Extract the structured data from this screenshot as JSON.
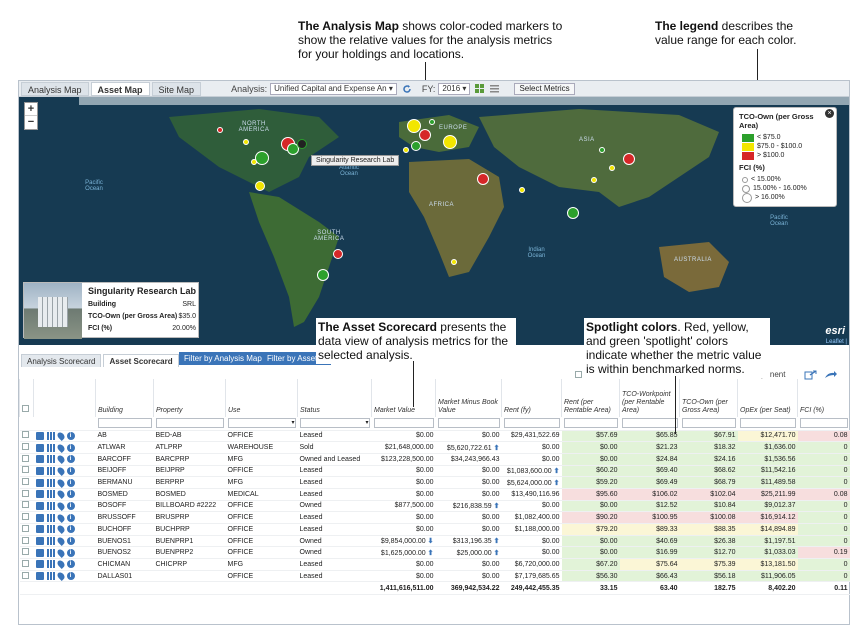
{
  "callouts": {
    "map_title": "The Analysis Map",
    "map_text": " shows color-coded markers to show the relative values for the analysis metrics for your holdings and locations.",
    "legend_title": "The legend",
    "legend_text": " describes the value range for each color.",
    "scorecard_title": "The Asset Scorecard",
    "scorecard_text": " presents the data view of analysis metrics for the selected analysis.",
    "spotlight_title": "Spotlight colors",
    "spotlight_text": ". Red, yellow, and green 'spotlight' colors indicate whether the metric value is within benchmarked norms."
  },
  "top_tabs": [
    "Analysis Map",
    "Asset Map",
    "Site Map"
  ],
  "toolbar": {
    "analysis_label": "Analysis:",
    "analysis_value": "Unified Capital and Expense An",
    "fy_label": "FY:",
    "fy_value": "2016",
    "select_metrics": "Select Metrics"
  },
  "map": {
    "zoom_in": "+",
    "zoom_out": "−",
    "labels": {
      "north_america": "NORTH AMERICA",
      "south_america": "SOUTH AMERICA",
      "africa": "AFRICA",
      "asia": "ASIA",
      "australia": "AUSTRALIA",
      "europe": "EUROPE",
      "pacific_ocean_1": "Pacific Ocean",
      "atlantic_ocean": "Atlantic Ocean",
      "pacific_ocean_2": "Pacific Ocean",
      "indian_ocean": "Indian Ocean"
    },
    "tooltip": "Singularity Research Lab",
    "esri": "esri",
    "leaflet": "Leaflet |"
  },
  "legend": {
    "tco_title": "TCO-Own (per Gross Area)",
    "tco_items": [
      {
        "label": "< $75.0",
        "color": "#2ca02c"
      },
      {
        "label": "$75.0 - $100.0",
        "color": "#f2e600"
      },
      {
        "label": "> $100.0",
        "color": "#d62728"
      }
    ],
    "fci_title": "FCI (%)",
    "fci_items": [
      "< 15.00%",
      "15.00% - 16.00%",
      "> 16.00%"
    ]
  },
  "infocard": {
    "title": "Singularity Research Lab",
    "rows": [
      {
        "k": "Building",
        "v": "SRL"
      },
      {
        "k": "TCO-Own (per Gross Area)",
        "v": "$35.0"
      },
      {
        "k": "FCI (%)",
        "v": "20.00%"
      }
    ]
  },
  "scorecard_tabs": [
    "Analysis Scorecard",
    "Asset Scorecard"
  ],
  "filters": [
    "Filter by Analysis Map",
    "Filter by Asset M"
  ],
  "right_toolbar_text": "ponent",
  "columns": [
    "Building",
    "Property",
    "Use",
    "Status",
    "Market Value",
    "Market Minus Book Value",
    "Rent (fy)",
    "Rent (per Rentable Area)",
    "TCO-Workpoint (per Rentable Area)",
    "TCO-Own (per Gross Area)",
    "OpEx (per Seat)",
    "FCI (%)"
  ],
  "rows": [
    {
      "building": "AB",
      "property": "BED-AB",
      "use": "OFFICE",
      "status": "Leased",
      "market": "$0.00",
      "mmb": "$0.00",
      "rent": "$29,431,522.69",
      "rpra": "$57.69",
      "tcow": "$65.85",
      "tcoo": "$67.91",
      "opex": "$12,471.70",
      "fci": "0.08"
    },
    {
      "building": "ATLWAR",
      "property": "ATLPRP",
      "use": "WAREHOUSE",
      "status": "Sold",
      "market": "$21,648,000.00",
      "mmb": "$5,620,722.61",
      "rent": "$0.00",
      "rpra": "$0.00",
      "tcow": "$21.23",
      "tcoo": "$18.32",
      "opex": "$1,636.00",
      "fci": "0"
    },
    {
      "building": "BARCOFF",
      "property": "BARCPRP",
      "use": "MFG",
      "status": "Owned and Leased",
      "market": "$123,228,500.00",
      "mmb": "$34,243,966.43",
      "rent": "$0.00",
      "rpra": "$0.00",
      "tcow": "$24.84",
      "tcoo": "$24.16",
      "opex": "$1,536.56",
      "fci": "0"
    },
    {
      "building": "BEIJOFF",
      "property": "BEIJPRP",
      "use": "OFFICE",
      "status": "Leased",
      "market": "$0.00",
      "mmb": "$0.00",
      "rent": "$1,083,600.00",
      "rpra": "$60.20",
      "tcow": "$69.40",
      "tcoo": "$68.62",
      "opex": "$11,542.16",
      "fci": "0"
    },
    {
      "building": "BERMANU",
      "property": "BERPRP",
      "use": "MFG",
      "status": "Leased",
      "market": "$0.00",
      "mmb": "$0.00",
      "rent": "$5,624,000.00",
      "rpra": "$59.20",
      "tcow": "$69.49",
      "tcoo": "$68.79",
      "opex": "$11,489.58",
      "fci": "0"
    },
    {
      "building": "BOSMED",
      "property": "BOSMED",
      "use": "MEDICAL",
      "status": "Leased",
      "market": "$0.00",
      "mmb": "$0.00",
      "rent": "$13,490,116.96",
      "rpra": "$95.60",
      "tcow": "$106.02",
      "tcoo": "$102.04",
      "opex": "$25,211.99",
      "fci": "0.08"
    },
    {
      "building": "BOSOFF",
      "property": "BILLBOARD #2222",
      "use": "OFFICE",
      "status": "Owned",
      "market": "$877,500.00",
      "mmb": "$216,838.59",
      "rent": "$0.00",
      "rpra": "$0.00",
      "tcow": "$12.52",
      "tcoo": "$10.84",
      "opex": "$9,012.37",
      "fci": "0"
    },
    {
      "building": "BRUSSOFF",
      "property": "BRUSPRP",
      "use": "OFFICE",
      "status": "Leased",
      "market": "$0.00",
      "mmb": "$0.00",
      "rent": "$1,082,400.00",
      "rpra": "$90.20",
      "tcow": "$100.95",
      "tcoo": "$100.08",
      "opex": "$16,914.12",
      "fci": "0"
    },
    {
      "building": "BUCHOFF",
      "property": "BUCHPRP",
      "use": "OFFICE",
      "status": "Leased",
      "market": "$0.00",
      "mmb": "$0.00",
      "rent": "$1,188,000.00",
      "rpra": "$79.20",
      "tcow": "$89.33",
      "tcoo": "$88.35",
      "opex": "$14,894.89",
      "fci": "0"
    },
    {
      "building": "BUENOS1",
      "property": "BUENPRP1",
      "use": "OFFICE",
      "status": "Owned",
      "market": "$9,854,000.00",
      "mmb": "$313,196.35",
      "rent": "$0.00",
      "rpra": "$0.00",
      "tcow": "$40.69",
      "tcoo": "$26.38",
      "opex": "$1,197.51",
      "fci": "0"
    },
    {
      "building": "BUENOS2",
      "property": "BUENPRP2",
      "use": "OFFICE",
      "status": "Owned",
      "market": "$1,625,000.00",
      "mmb": "$25,000.00",
      "rent": "$0.00",
      "rpra": "$0.00",
      "tcow": "$16.99",
      "tcoo": "$12.70",
      "opex": "$1,033.03",
      "fci": "0.19"
    },
    {
      "building": "CHICMAN",
      "property": "CHICPRP",
      "use": "MFG",
      "status": "Leased",
      "market": "$0.00",
      "mmb": "$0.00",
      "rent": "$6,720,000.00",
      "rpra": "$67.20",
      "tcow": "$75.64",
      "tcoo": "$75.39",
      "opex": "$13,181.50",
      "fci": "0"
    },
    {
      "building": "DALLAS01",
      "property": "",
      "use": "OFFICE",
      "status": "Leased",
      "market": "$0.00",
      "mmb": "$0.00",
      "rent": "$7,179,685.65",
      "rpra": "$56.30",
      "tcow": "$66.43",
      "tcoo": "$56.18",
      "opex": "$11,906.05",
      "fci": "0"
    }
  ],
  "totals": {
    "market": "1,411,616,511.00",
    "mmb": "369,942,534.22",
    "rent": "249,442,455.35",
    "rpra": "33.15",
    "tcow": "63.40",
    "tcoo": "182.75",
    "opex": "8,402.20",
    "fci": "0.11"
  }
}
